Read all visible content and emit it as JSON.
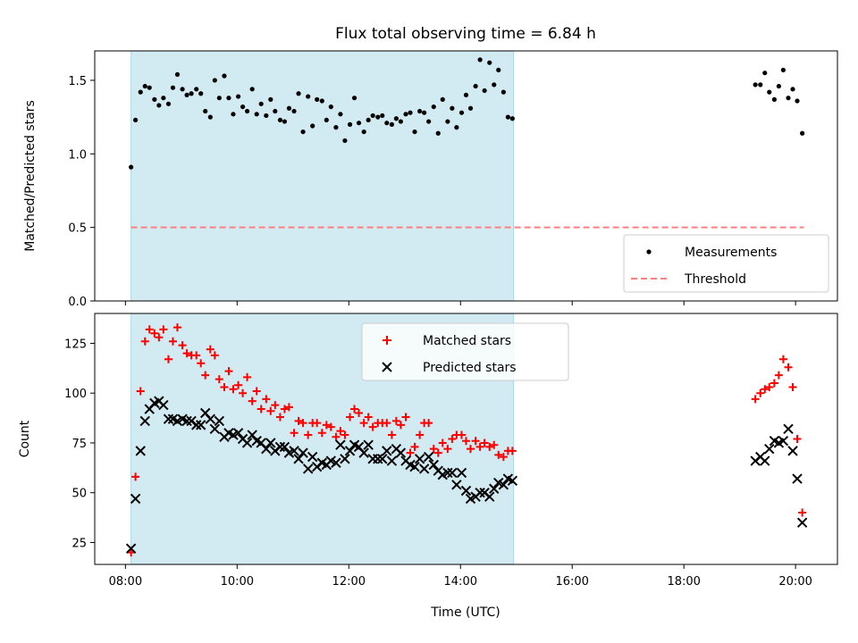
{
  "title": "Flux total observing time = 6.84 h",
  "xlabel": "Time (UTC)",
  "x_ticks": [
    "08:00",
    "10:00",
    "12:00",
    "14:00",
    "16:00",
    "18:00",
    "20:00"
  ],
  "x_tick_hours": [
    8,
    10,
    12,
    14,
    16,
    18,
    20
  ],
  "xlim_hours": [
    7.45,
    20.75
  ],
  "span_hours": [
    8.1,
    14.95
  ],
  "colors": {
    "span": "#add8e6",
    "measurement": "#000000",
    "threshold": "#ff7f7f",
    "matched": "#ff0000",
    "predicted": "#000000"
  },
  "chart_data": [
    {
      "type": "scatter",
      "ylabel": "Matched/Predicted stars",
      "ylim": [
        0,
        1.7
      ],
      "y_ticks": [
        "0.0",
        "0.5",
        "1.0",
        "1.5"
      ],
      "y_tick_values": [
        0.0,
        0.5,
        1.0,
        1.5
      ],
      "legend": {
        "placement": "lower-right",
        "entries": [
          "Measurements",
          "Threshold"
        ]
      },
      "threshold": {
        "name": "Threshold",
        "y": 0.5,
        "x_range_hours": [
          8.1,
          20.15
        ]
      },
      "series": [
        {
          "name": "Measurements",
          "x_hours": [
            8.1,
            8.18,
            8.27,
            8.35,
            8.43,
            8.52,
            8.6,
            8.68,
            8.77,
            8.85,
            8.93,
            9.02,
            9.1,
            9.18,
            9.27,
            9.35,
            9.43,
            9.52,
            9.6,
            9.68,
            9.77,
            9.85,
            9.93,
            10.02,
            10.1,
            10.18,
            10.27,
            10.35,
            10.43,
            10.52,
            10.6,
            10.68,
            10.77,
            10.85,
            10.93,
            11.02,
            11.1,
            11.18,
            11.27,
            11.35,
            11.43,
            11.52,
            11.6,
            11.68,
            11.77,
            11.85,
            11.93,
            12.02,
            12.1,
            12.18,
            12.27,
            12.35,
            12.43,
            12.52,
            12.6,
            12.68,
            12.77,
            12.85,
            12.93,
            13.02,
            13.1,
            13.18,
            13.27,
            13.35,
            13.43,
            13.52,
            13.6,
            13.68,
            13.77,
            13.85,
            13.93,
            14.02,
            14.1,
            14.18,
            14.27,
            14.35,
            14.43,
            14.52,
            14.6,
            14.68,
            14.77,
            14.85,
            14.93,
            19.28,
            19.37,
            19.45,
            19.53,
            19.62,
            19.7,
            19.78,
            19.87,
            19.95,
            20.03,
            20.12
          ],
          "y": [
            0.91,
            1.23,
            1.42,
            1.46,
            1.45,
            1.37,
            1.33,
            1.38,
            1.34,
            1.45,
            1.54,
            1.44,
            1.4,
            1.41,
            1.44,
            1.41,
            1.29,
            1.25,
            1.5,
            1.38,
            1.53,
            1.38,
            1.27,
            1.39,
            1.32,
            1.29,
            1.44,
            1.27,
            1.34,
            1.26,
            1.37,
            1.29,
            1.23,
            1.22,
            1.31,
            1.29,
            1.41,
            1.15,
            1.39,
            1.19,
            1.37,
            1.36,
            1.23,
            1.32,
            1.18,
            1.27,
            1.09,
            1.2,
            1.38,
            1.21,
            1.15,
            1.23,
            1.26,
            1.25,
            1.26,
            1.21,
            1.2,
            1.24,
            1.22,
            1.27,
            1.28,
            1.15,
            1.29,
            1.28,
            1.22,
            1.32,
            1.14,
            1.37,
            1.22,
            1.31,
            1.18,
            1.28,
            1.4,
            1.31,
            1.46,
            1.64,
            1.43,
            1.62,
            1.47,
            1.57,
            1.42,
            1.25,
            1.24,
            1.47,
            1.47,
            1.55,
            1.42,
            1.37,
            1.46,
            1.57,
            1.38,
            1.44,
            1.36,
            1.14
          ]
        }
      ]
    },
    {
      "type": "scatter",
      "ylabel": "Count",
      "ylim": [
        14,
        140
      ],
      "y_ticks": [
        "25",
        "50",
        "75",
        "100",
        "125"
      ],
      "y_tick_values": [
        25,
        50,
        75,
        100,
        125
      ],
      "legend": {
        "placement": "upper-center",
        "entries": [
          "Matched stars",
          "Predicted stars"
        ]
      },
      "series": [
        {
          "name": "Matched stars",
          "marker": "plus",
          "x_hours": [
            8.1,
            8.18,
            8.27,
            8.35,
            8.43,
            8.52,
            8.6,
            8.68,
            8.77,
            8.85,
            8.93,
            9.02,
            9.1,
            9.18,
            9.27,
            9.35,
            9.43,
            9.52,
            9.6,
            9.68,
            9.77,
            9.85,
            9.93,
            10.02,
            10.1,
            10.18,
            10.27,
            10.35,
            10.43,
            10.52,
            10.6,
            10.68,
            10.77,
            10.85,
            10.93,
            11.02,
            11.1,
            11.18,
            11.27,
            11.35,
            11.43,
            11.52,
            11.6,
            11.68,
            11.77,
            11.85,
            11.93,
            12.02,
            12.1,
            12.18,
            12.27,
            12.35,
            12.43,
            12.52,
            12.6,
            12.68,
            12.77,
            12.85,
            12.93,
            13.02,
            13.1,
            13.18,
            13.27,
            13.35,
            13.43,
            13.52,
            13.6,
            13.68,
            13.77,
            13.85,
            13.93,
            14.02,
            14.1,
            14.18,
            14.27,
            14.35,
            14.43,
            14.52,
            14.6,
            14.68,
            14.77,
            14.85,
            14.93,
            19.28,
            19.37,
            19.45,
            19.53,
            19.62,
            19.7,
            19.78,
            19.87,
            19.95,
            20.03,
            20.12
          ],
          "y": [
            20,
            58,
            101,
            126,
            132,
            130,
            128,
            132,
            117,
            126,
            133,
            124,
            120,
            119,
            119,
            115,
            109,
            122,
            119,
            107,
            103,
            111,
            102,
            104,
            100,
            108,
            96,
            101,
            92,
            97,
            91,
            94,
            88,
            92,
            93,
            80,
            86,
            85,
            79,
            85,
            85,
            80,
            84,
            83,
            78,
            81,
            79,
            88,
            92,
            90,
            85,
            88,
            83,
            85,
            85,
            85,
            79,
            86,
            84,
            88,
            70,
            73,
            79,
            85,
            85,
            72,
            70,
            75,
            72,
            77,
            79,
            79,
            76,
            72,
            76,
            73,
            75,
            73,
            74,
            69,
            68,
            71,
            71,
            97,
            100,
            102,
            103,
            105,
            109,
            117,
            113,
            103,
            77,
            40
          ]
        },
        {
          "name": "Predicted stars",
          "marker": "x",
          "x_hours": [
            8.1,
            8.18,
            8.27,
            8.35,
            8.43,
            8.52,
            8.6,
            8.68,
            8.77,
            8.85,
            8.93,
            9.02,
            9.1,
            9.18,
            9.27,
            9.35,
            9.43,
            9.52,
            9.6,
            9.68,
            9.77,
            9.85,
            9.93,
            10.02,
            10.1,
            10.18,
            10.27,
            10.35,
            10.43,
            10.52,
            10.6,
            10.68,
            10.77,
            10.85,
            10.93,
            11.02,
            11.1,
            11.18,
            11.27,
            11.35,
            11.43,
            11.52,
            11.6,
            11.68,
            11.77,
            11.85,
            11.93,
            12.02,
            12.1,
            12.18,
            12.27,
            12.35,
            12.43,
            12.52,
            12.6,
            12.68,
            12.77,
            12.85,
            12.93,
            13.02,
            13.1,
            13.18,
            13.27,
            13.35,
            13.43,
            13.52,
            13.6,
            13.68,
            13.77,
            13.85,
            13.93,
            14.02,
            14.1,
            14.18,
            14.27,
            14.35,
            14.43,
            14.52,
            14.6,
            14.68,
            14.77,
            14.85,
            14.93,
            19.28,
            19.37,
            19.45,
            19.53,
            19.62,
            19.7,
            19.78,
            19.87,
            19.95,
            20.03,
            20.12
          ],
          "y": [
            22,
            47,
            71,
            86,
            92,
            95,
            96,
            94,
            87,
            87,
            86,
            87,
            86,
            86,
            84,
            84,
            90,
            87,
            82,
            86,
            78,
            80,
            79,
            80,
            77,
            75,
            79,
            76,
            75,
            72,
            75,
            71,
            73,
            73,
            70,
            71,
            67,
            70,
            62,
            68,
            63,
            65,
            64,
            66,
            65,
            74,
            67,
            71,
            74,
            73,
            70,
            74,
            67,
            67,
            67,
            71,
            66,
            72,
            70,
            66,
            64,
            63,
            67,
            62,
            68,
            64,
            61,
            59,
            60,
            60,
            54,
            60,
            51,
            47,
            48,
            50,
            50,
            48,
            52,
            55,
            54,
            57,
            56,
            66,
            68,
            66,
            72,
            76,
            75,
            76,
            82,
            71,
            57,
            35
          ]
        }
      ]
    }
  ]
}
